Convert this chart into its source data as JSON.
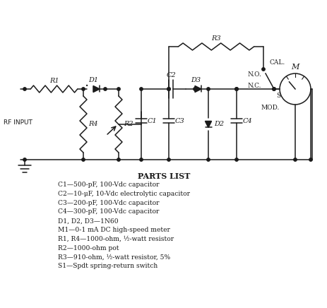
{
  "background_color": "#ffffff",
  "parts_list_title": "PARTS LIST",
  "line_color": "#1a1a1a",
  "text_color": "#1a1a1a",
  "parts_list": [
    "C1—500-pF, 100-Vdc capacitor",
    "C2—10-μF, 10-Vdc electrolytic capacitor",
    "C3—200-pF, 100-Vdc capacitor",
    "C4—300-pF, 100-Vdc capacitor",
    "D1, D2, D3—1N60",
    "M1—0-1 mA DC high-speed meter",
    "R1, R4—1000-ohm, ½-watt resistor",
    "R2—1000-ohm pot",
    "R3—910-ohm, ½-watt resistor, 5%",
    "S1—Spdt spring-return switch"
  ]
}
